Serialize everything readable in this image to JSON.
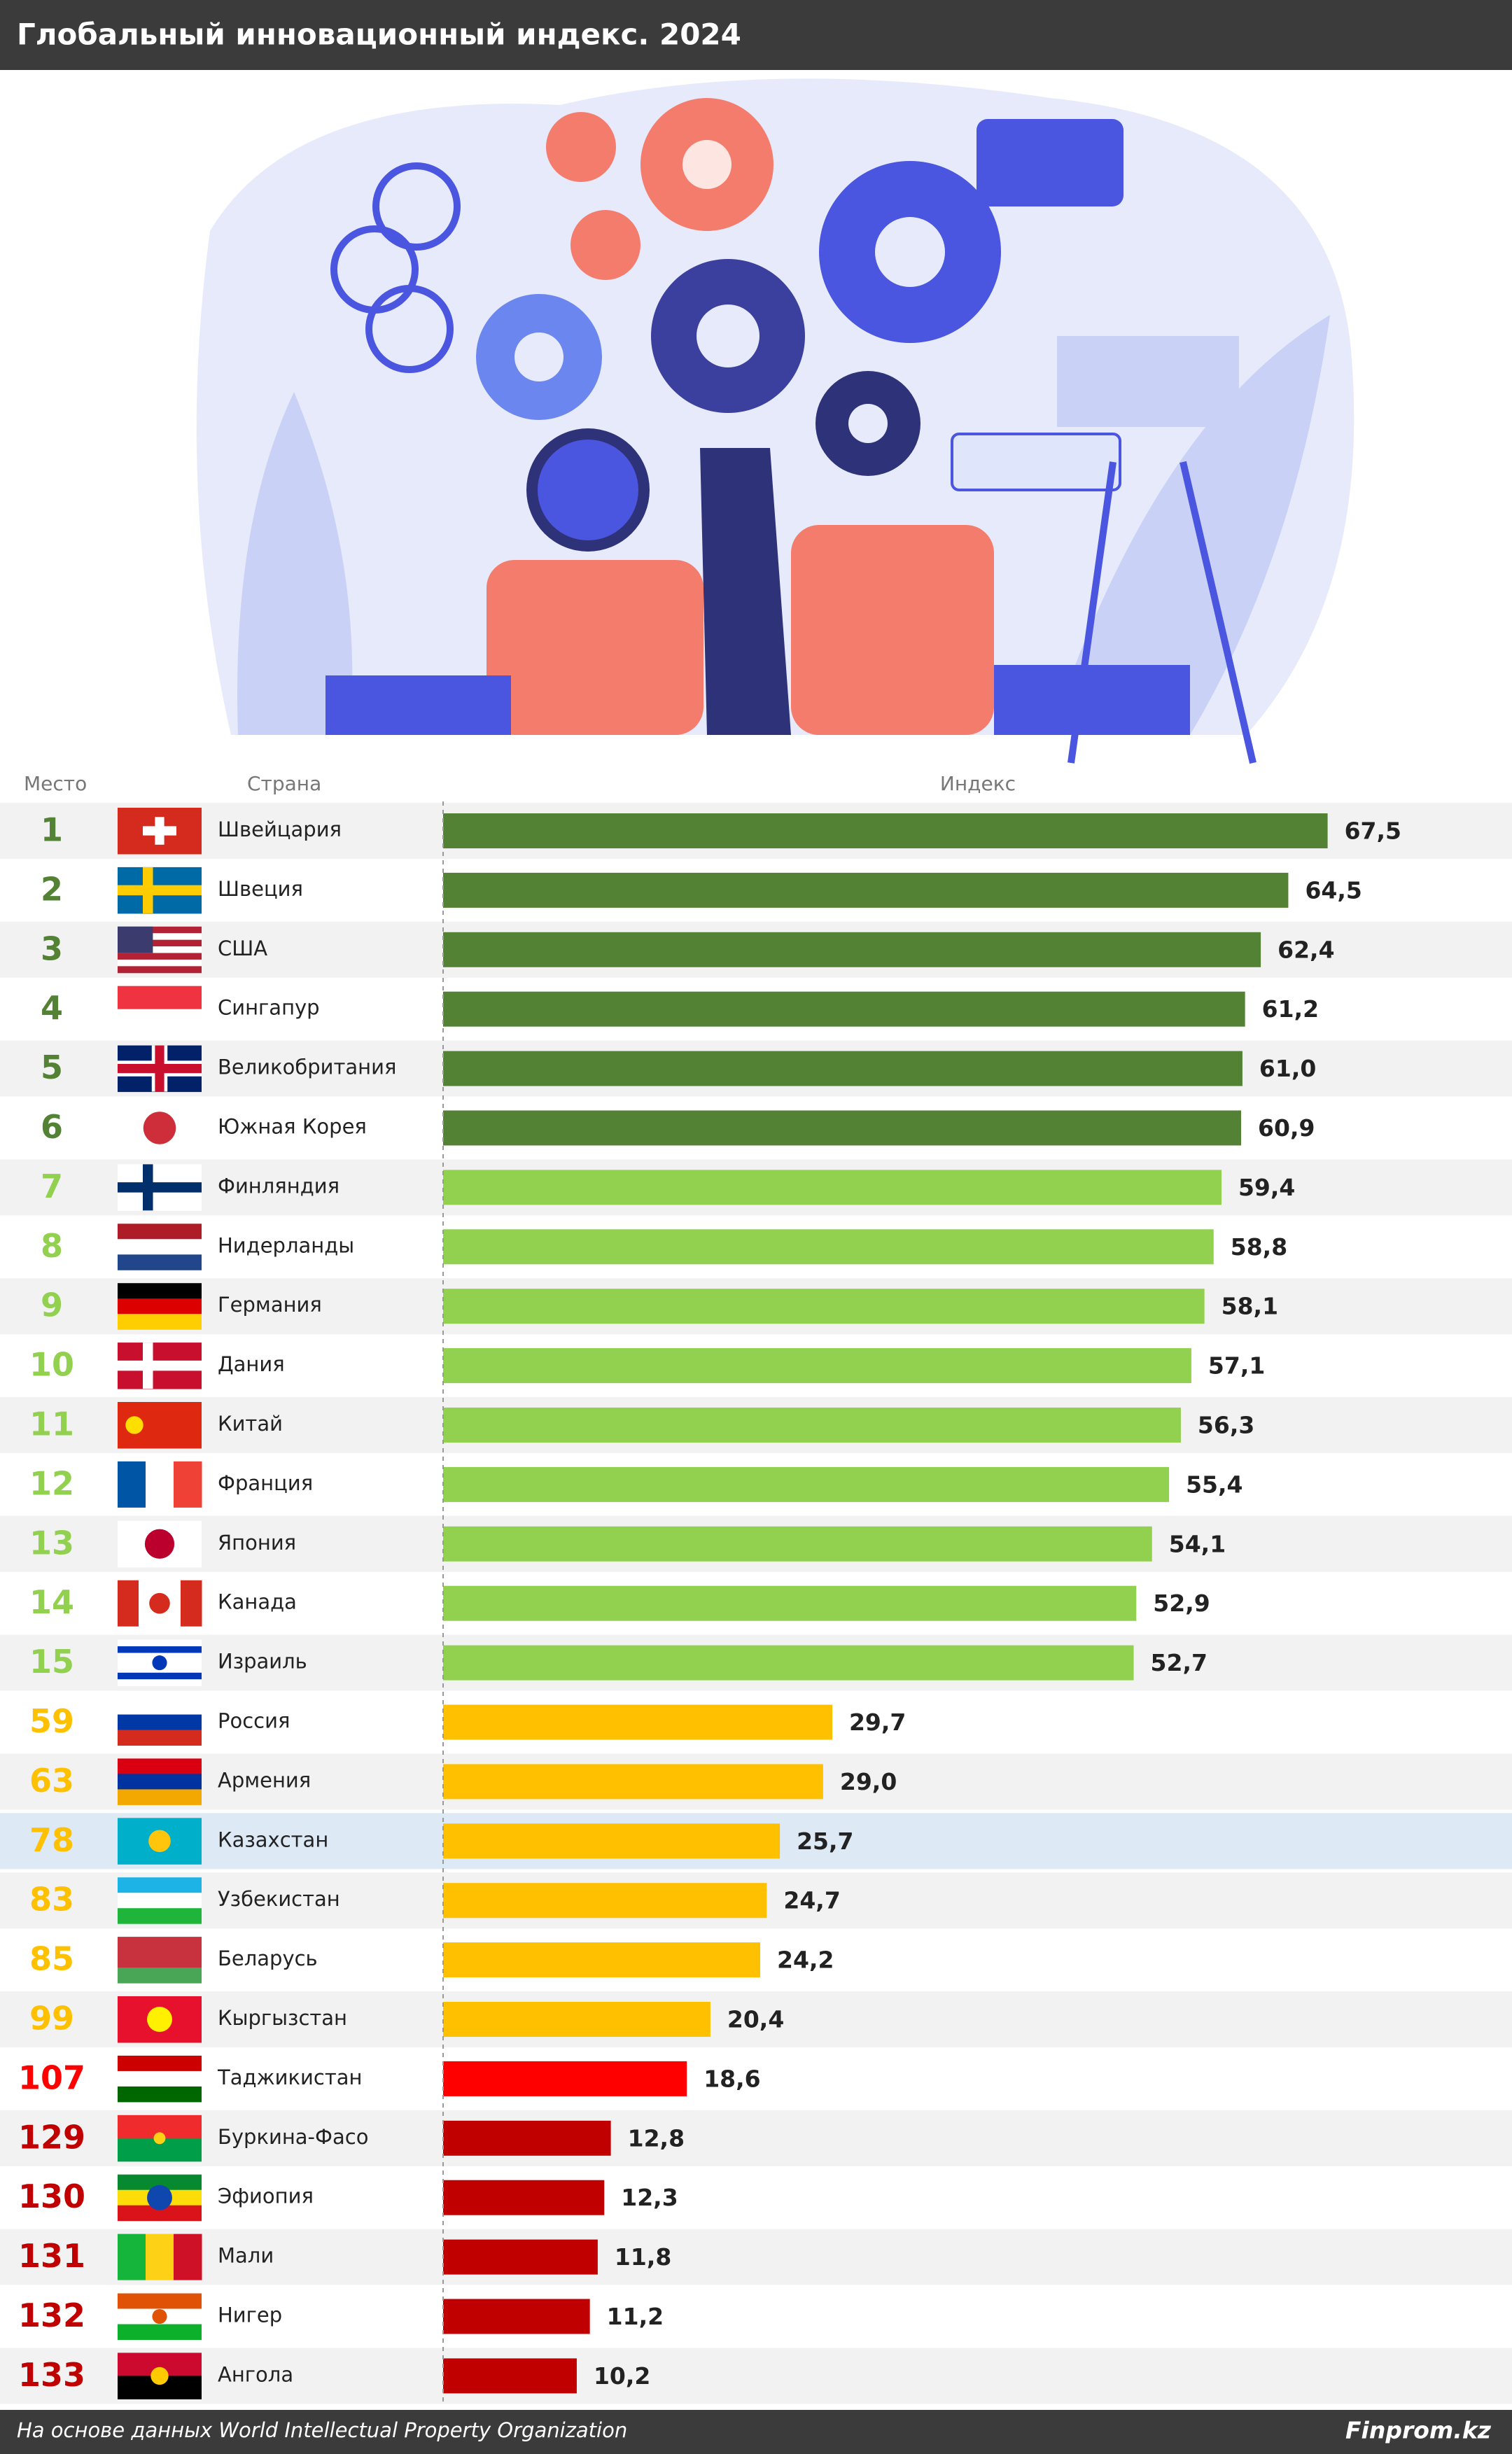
{
  "header": {
    "title": "Глобальный инновационный индекс. 2024"
  },
  "chart_data": {
    "type": "bar",
    "orientation": "horizontal",
    "column_labels": {
      "rank": "Место",
      "country": "Страна",
      "value": "Индекс"
    },
    "ranks": [
      1,
      2,
      3,
      4,
      5,
      6,
      7,
      8,
      9,
      10,
      11,
      12,
      13,
      14,
      15,
      59,
      63,
      78,
      83,
      85,
      99,
      107,
      129,
      130,
      131,
      132,
      133
    ],
    "categories": [
      "Швейцария",
      "Швеция",
      "США",
      "Сингапур",
      "Великобритания",
      "Южная Корея",
      "Финляндия",
      "Нидерланды",
      "Германия",
      "Дания",
      "Китай",
      "Франция",
      "Япония",
      "Канада",
      "Израиль",
      "Россия",
      "Армения",
      "Казахстан",
      "Узбекистан",
      "Беларусь",
      "Кыргызстан",
      "Таджикистан",
      "Буркина-Фасо",
      "Эфиопия",
      "Мали",
      "Нигер",
      "Ангола"
    ],
    "values": [
      67.5,
      64.5,
      62.4,
      61.2,
      61.0,
      60.9,
      59.4,
      58.8,
      58.1,
      57.1,
      56.3,
      55.4,
      54.1,
      52.9,
      52.7,
      29.7,
      29.0,
      25.7,
      24.7,
      24.2,
      20.4,
      18.6,
      12.8,
      12.3,
      11.8,
      11.2,
      10.2
    ],
    "value_labels": [
      "67,5",
      "64,5",
      "62,4",
      "61,2",
      "61,0",
      "60,9",
      "59,4",
      "58,8",
      "58,1",
      "57,1",
      "56,3",
      "55,4",
      "54,1",
      "52,9",
      "52,7",
      "29,7",
      "29,0",
      "25,7",
      "24,7",
      "24,2",
      "20,4",
      "18,6",
      "12,8",
      "12,3",
      "11,8",
      "11,2",
      "10,2"
    ],
    "colors": [
      "#548235",
      "#548235",
      "#548235",
      "#548235",
      "#548235",
      "#548235",
      "#92d050",
      "#92d050",
      "#92d050",
      "#92d050",
      "#92d050",
      "#92d050",
      "#92d050",
      "#92d050",
      "#92d050",
      "#ffc000",
      "#ffc000",
      "#ffc000",
      "#ffc000",
      "#ffc000",
      "#ffc000",
      "#ff0000",
      "#c00000",
      "#c00000",
      "#c00000",
      "#c00000",
      "#c00000"
    ],
    "highlight": "Казахстан"
  },
  "footer": {
    "source": "На основе данных World Intellectual Property Organization",
    "brand": "Finprom.kz"
  }
}
